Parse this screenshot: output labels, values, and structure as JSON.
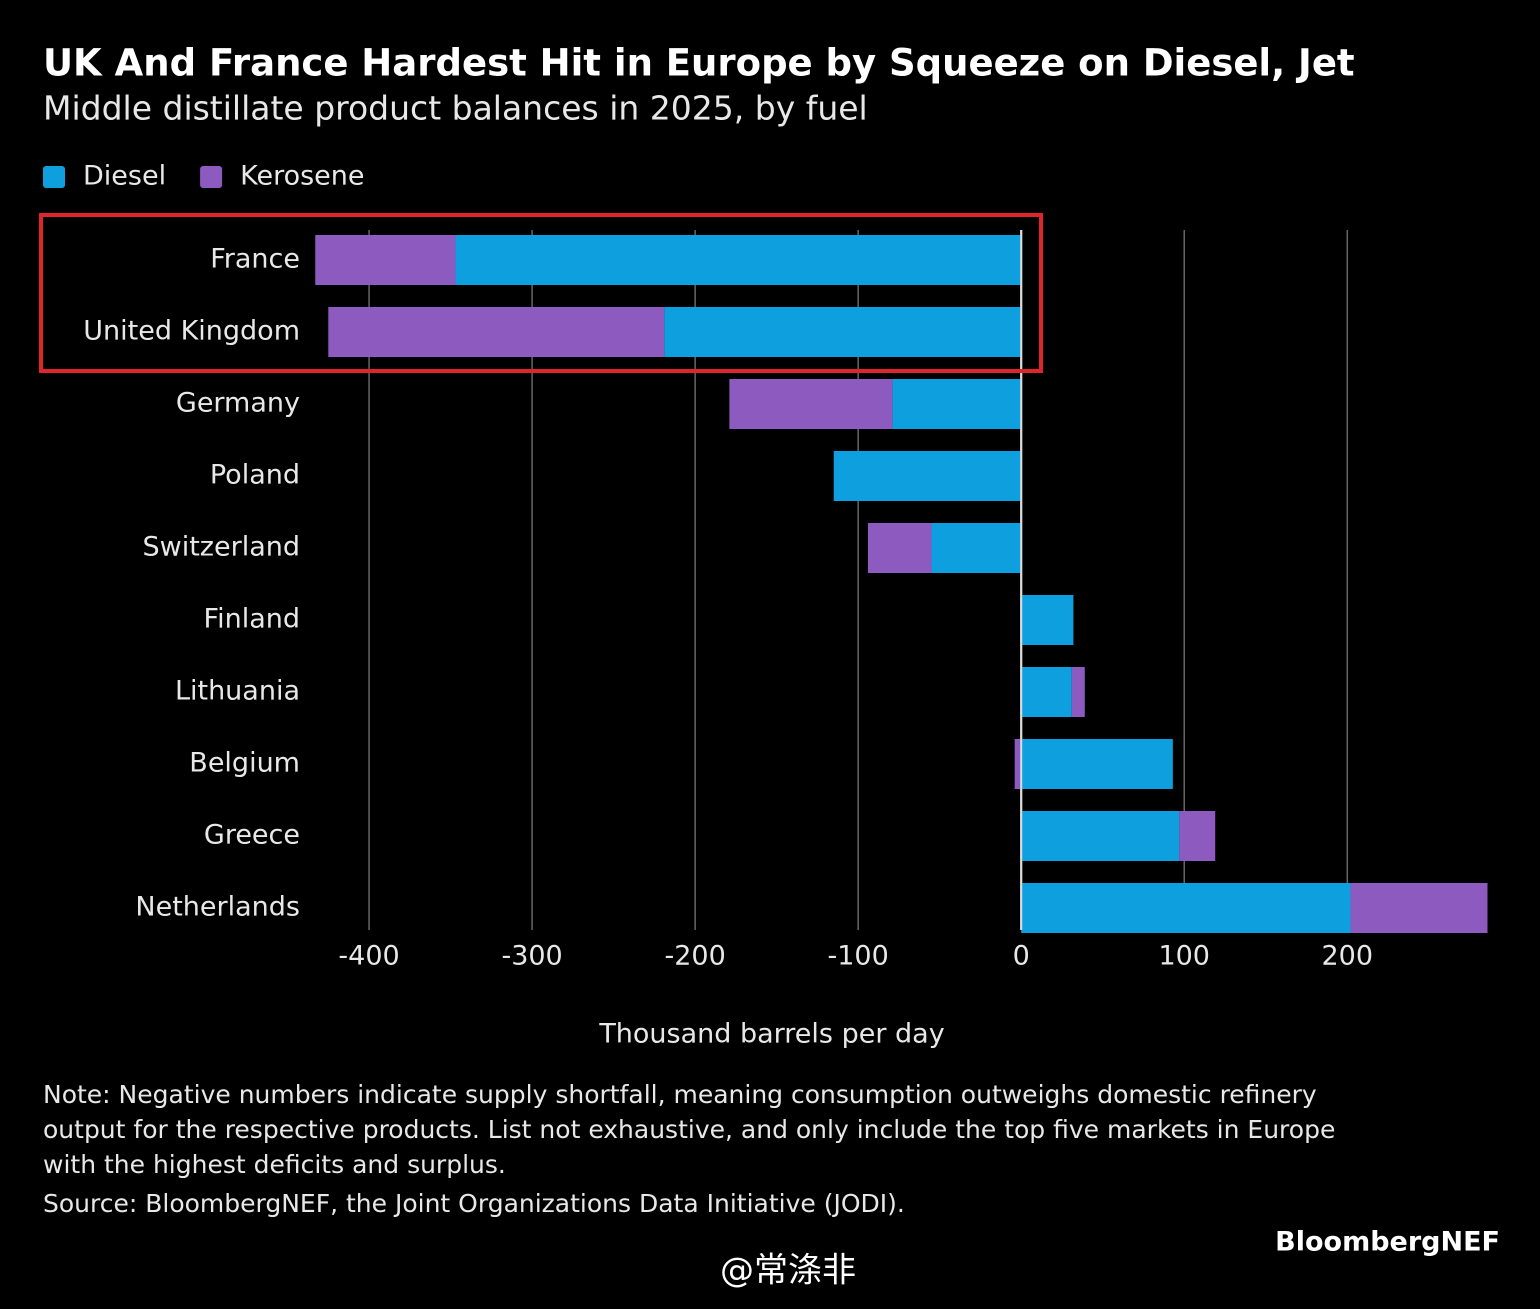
{
  "chart_data": {
    "type": "stacked-hbar",
    "title": "UK And France Hardest Hit in Europe by Squeeze on Diesel, Jet",
    "subtitle": "Middle distillate product balances in 2025, by fuel",
    "categories": [
      "France",
      "United Kingdom",
      "Germany",
      "Poland",
      "Switzerland",
      "Finland",
      "Lithuania",
      "Belgium",
      "Greece",
      "Netherlands"
    ],
    "series": [
      {
        "name": "Diesel",
        "color": "#0ea0de",
        "values": [
          -347,
          -219,
          -79,
          -115,
          -55,
          32,
          31,
          93,
          97,
          202
        ]
      },
      {
        "name": "Kerosene",
        "color": "#8d5bbf",
        "values": [
          -86,
          -206,
          -100,
          0,
          -39,
          0,
          8,
          -4,
          22,
          84
        ]
      }
    ],
    "xlim": [
      -435,
      290
    ],
    "xticks": [
      -400,
      -300,
      -200,
      -100,
      0,
      100,
      200
    ],
    "xlabel": "Thousand barrels per day",
    "grid": true,
    "legend": "top-left",
    "note": [
      "Note: Negative numbers indicate supply shortfall, meaning consumption outweighs domestic refinery",
      "output for the respective products. List not exhaustive, and only include the top five markets in Europe",
      "with the highest deficits and surplus."
    ],
    "source": "Source: BloombergNEF, the Joint Organizations Data Initiative (JODI).",
    "logo": "BloombergNEF",
    "watermark": "@常涤非"
  }
}
